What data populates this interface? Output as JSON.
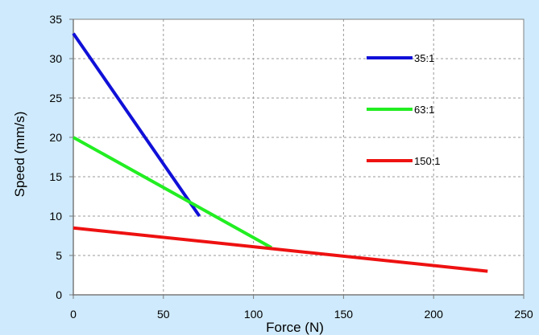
{
  "chart_data": {
    "type": "line",
    "title": "",
    "xlabel": "Force (N)",
    "ylabel": "Speed (mm/s)",
    "xlim": [
      0,
      250
    ],
    "ylim": [
      0,
      35
    ],
    "xticks": [
      "0",
      "50",
      "100",
      "150",
      "200",
      "250"
    ],
    "yticks": [
      "0",
      "5",
      "10",
      "15",
      "20",
      "25",
      "30",
      "35"
    ],
    "grid": true,
    "legend_position": "right",
    "plot_background": "#ffffff",
    "page_background": "#cfeafc",
    "series": [
      {
        "name": "35:1",
        "color": "#1010d8",
        "points": [
          [
            0,
            33.2
          ],
          [
            70,
            10
          ]
        ]
      },
      {
        "name": "63:1",
        "color": "#22ee22",
        "points": [
          [
            0,
            20
          ],
          [
            110,
            6
          ]
        ]
      },
      {
        "name": "150:1",
        "color": "#ee1111",
        "points": [
          [
            0,
            8.5
          ],
          [
            230,
            3
          ]
        ]
      }
    ]
  }
}
